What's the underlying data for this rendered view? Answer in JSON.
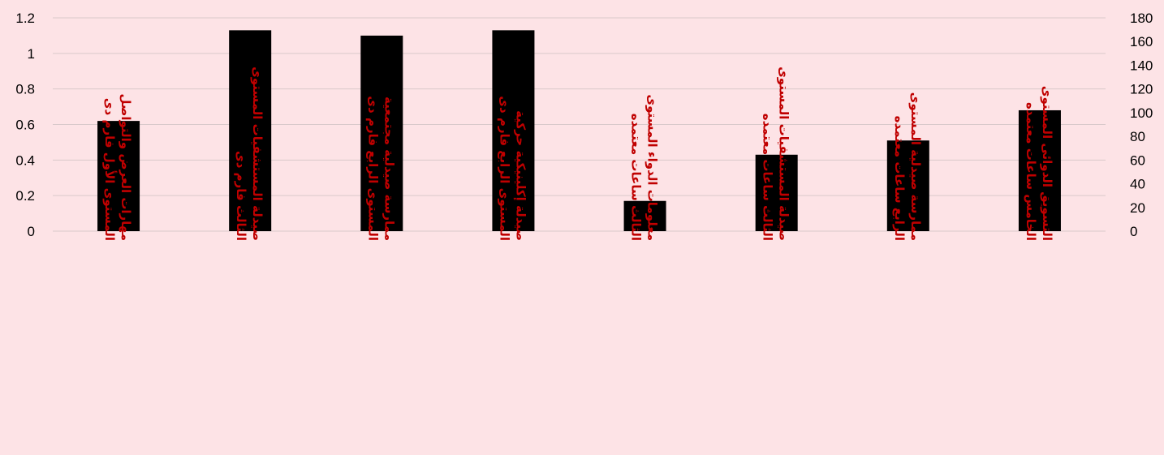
{
  "colors": {
    "background": "#fde3e6",
    "bar": "#000000",
    "category_text": "#c00000",
    "gridline": "#d9c9cb"
  },
  "chart_data": {
    "type": "bar",
    "title": "",
    "xlabel": "",
    "ylabel": "",
    "grid": true,
    "legend": "none",
    "categories": [
      [
        "مهارات العرض والتواصل",
        "المستوى الأول فارم دى"
      ],
      [
        "صيدلة المستشفيات المستوى",
        "الثالث فارم دى"
      ],
      [
        "ممارسة صيدلية مجتمعية",
        "المستوى الرابع فارم دى"
      ],
      [
        "صيدلة إكلينيكية حركية",
        "المستوى الرابع فارم دى"
      ],
      [
        "معلومات الدواء المستوى",
        "الثالث ساعات معتمده"
      ],
      [
        "صيدلة المستشفيات المستوى",
        "الثالث ساعات معتمده"
      ],
      [
        "ممارسة صيدلية المستوى",
        "الرابع ساعات معتمده"
      ],
      [
        "التسويق الدوائى المستوى",
        "الخامس ساعات معتمده"
      ]
    ],
    "values": [
      0.62,
      1.13,
      1.1,
      1.13,
      0.17,
      0.43,
      0.51,
      0.68
    ],
    "y_left": {
      "min": 0,
      "max": 1.2,
      "ticks": [
        "0",
        "0.2",
        "0.4",
        "0.6",
        "0.8",
        "1",
        "1.2"
      ]
    },
    "y_right": {
      "min": 0,
      "max": 180,
      "ticks": [
        "0",
        "20",
        "40",
        "60",
        "80",
        "100",
        "120",
        "140",
        "160",
        "180"
      ]
    }
  }
}
